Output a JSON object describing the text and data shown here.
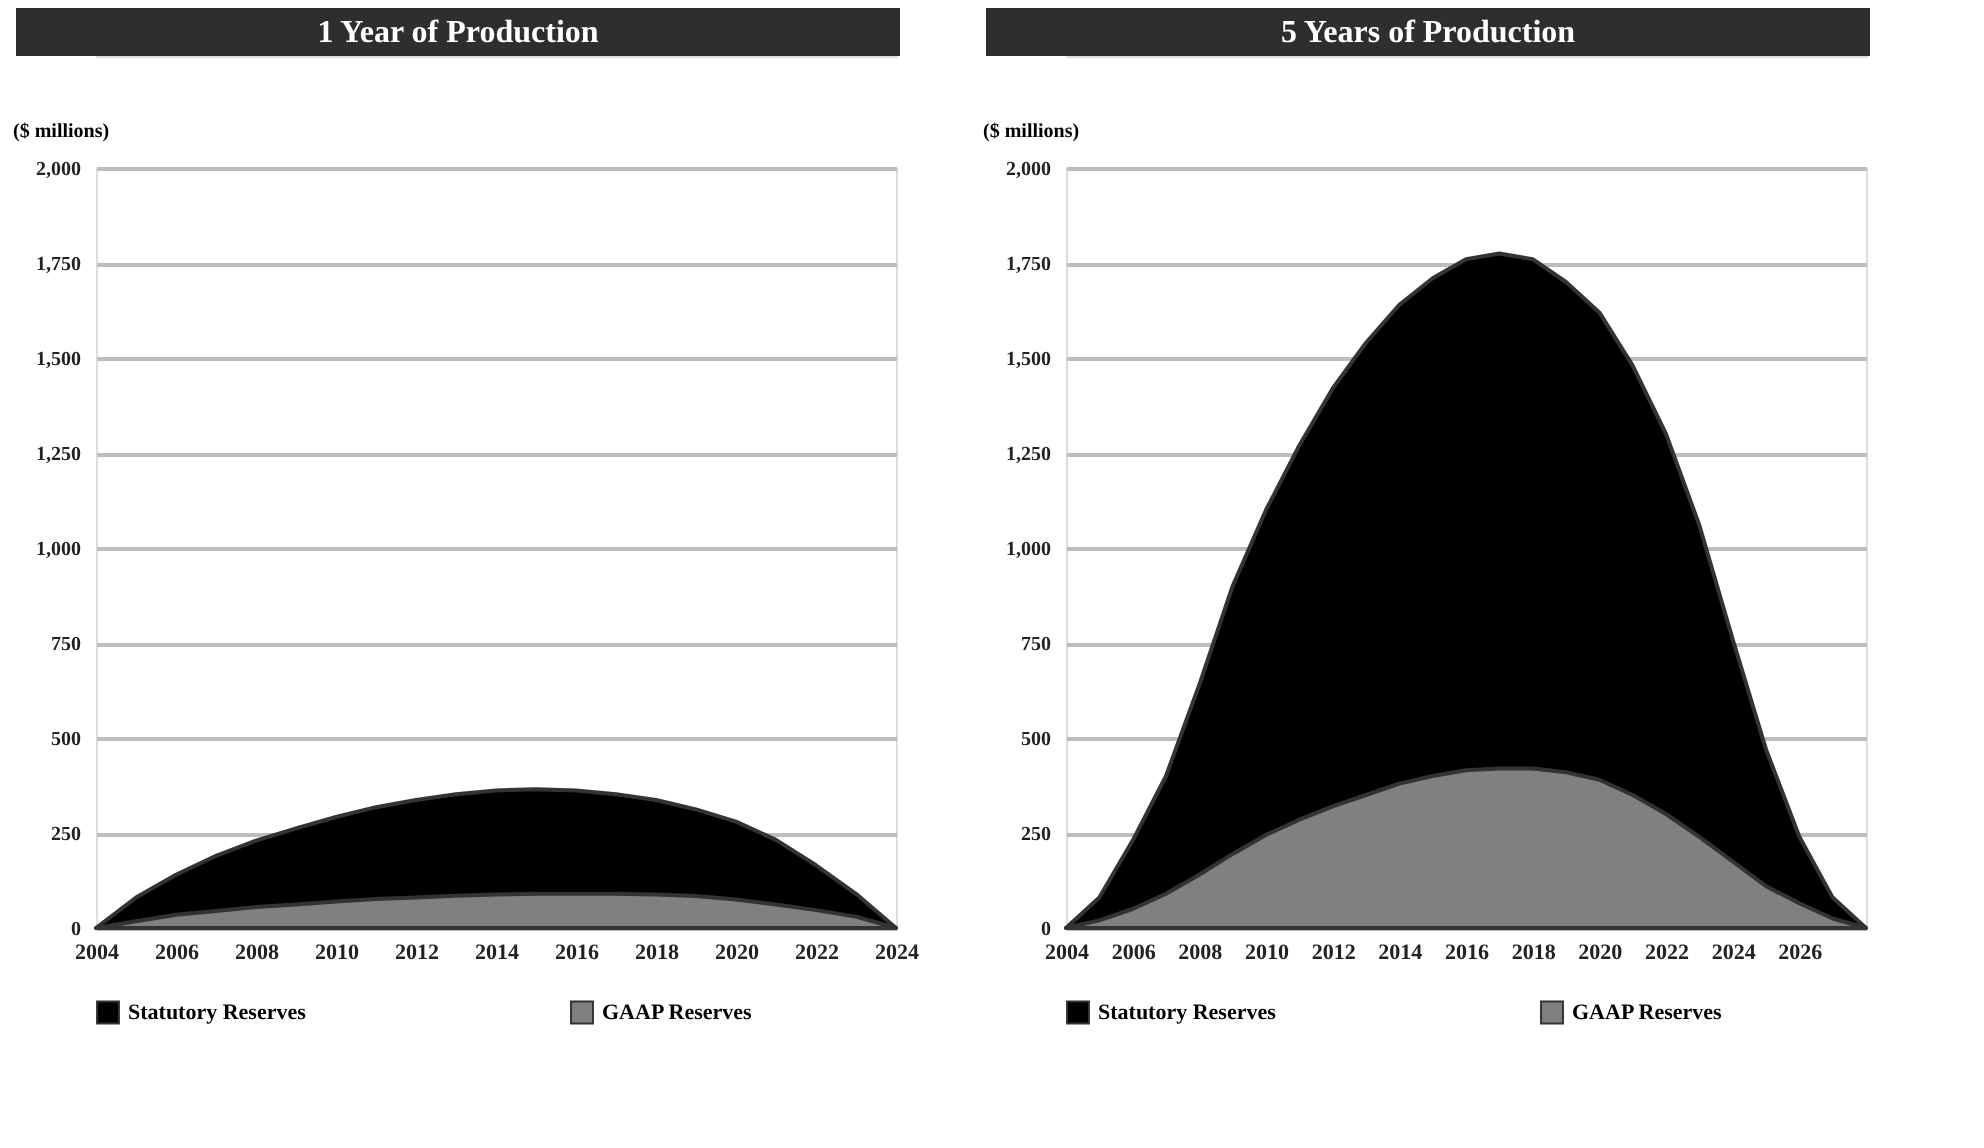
{
  "chart_data": [
    {
      "type": "area",
      "title": "1 Year of Production",
      "ylabel": "($ millions)",
      "x": [
        2004,
        2005,
        2006,
        2007,
        2008,
        2009,
        2010,
        2011,
        2012,
        2013,
        2014,
        2015,
        2016,
        2017,
        2018,
        2019,
        2020,
        2021,
        2022,
        2023,
        2024
      ],
      "series": [
        {
          "name": "Statutory Reserves",
          "color": "#000000",
          "values": [
            0,
            80,
            140,
            190,
            230,
            262,
            292,
            318,
            337,
            352,
            362,
            365,
            362,
            352,
            337,
            312,
            280,
            232,
            165,
            90,
            0
          ]
        },
        {
          "name": "GAAP Reserves",
          "color": "#808080",
          "values": [
            0,
            18,
            35,
            45,
            55,
            62,
            70,
            76,
            80,
            85,
            88,
            90,
            90,
            90,
            88,
            84,
            75,
            62,
            47,
            30,
            0
          ]
        }
      ],
      "xlim": [
        2004,
        2024
      ],
      "xticks": [
        2004,
        2006,
        2008,
        2010,
        2012,
        2014,
        2016,
        2018,
        2020,
        2022,
        2024
      ],
      "ylim": [
        0,
        2000
      ],
      "yticks": [
        0,
        {
          "value": 250,
          "label": "250"
        },
        {
          "value": 500,
          "label": "500"
        },
        {
          "value": 750,
          "label": "750"
        },
        {
          "value": 1000,
          "label": "1,000"
        },
        {
          "value": 1250,
          "label": "1,250"
        },
        {
          "value": 1500,
          "label": "1,500"
        },
        {
          "value": 1750,
          "label": "1,750"
        },
        {
          "value": 2000,
          "label": "2,000"
        }
      ],
      "grid": "y",
      "legend": "bottom"
    },
    {
      "type": "area",
      "title": "5 Years of Production",
      "ylabel": "($ millions)",
      "x": [
        2004,
        2005,
        2006,
        2007,
        2008,
        2009,
        2010,
        2011,
        2012,
        2013,
        2014,
        2015,
        2016,
        2017,
        2018,
        2019,
        2020,
        2021,
        2022,
        2023,
        2024,
        2025,
        2026,
        2027,
        2028
      ],
      "series": [
        {
          "name": "Statutory Reserves",
          "color": "#000000",
          "values": [
            0,
            80,
            230,
            400,
            640,
            900,
            1100,
            1270,
            1420,
            1540,
            1640,
            1710,
            1760,
            1775,
            1760,
            1700,
            1620,
            1480,
            1300,
            1060,
            760,
            470,
            240,
            80,
            0
          ]
        },
        {
          "name": "GAAP Reserves",
          "color": "#808080",
          "values": [
            0,
            20,
            50,
            90,
            140,
            195,
            245,
            285,
            320,
            350,
            380,
            400,
            415,
            420,
            420,
            410,
            390,
            350,
            300,
            240,
            175,
            110,
            65,
            25,
            0
          ]
        }
      ],
      "xlim": [
        2004,
        2028
      ],
      "xticks": [
        2004,
        2006,
        2008,
        2010,
        2012,
        2014,
        2016,
        2018,
        2020,
        2022,
        2024,
        2026
      ],
      "ylim": [
        0,
        2000
      ],
      "yticks": [
        0,
        {
          "value": 250,
          "label": "250"
        },
        {
          "value": 500,
          "label": "500"
        },
        {
          "value": 750,
          "label": "750"
        },
        {
          "value": 1000,
          "label": "1,000"
        },
        {
          "value": 1250,
          "label": "1,250"
        },
        {
          "value": 1500,
          "label": "1,500"
        },
        {
          "value": 1750,
          "label": "1,750"
        },
        {
          "value": 2000,
          "label": "2,000"
        }
      ],
      "grid": "y",
      "legend": "bottom"
    }
  ]
}
